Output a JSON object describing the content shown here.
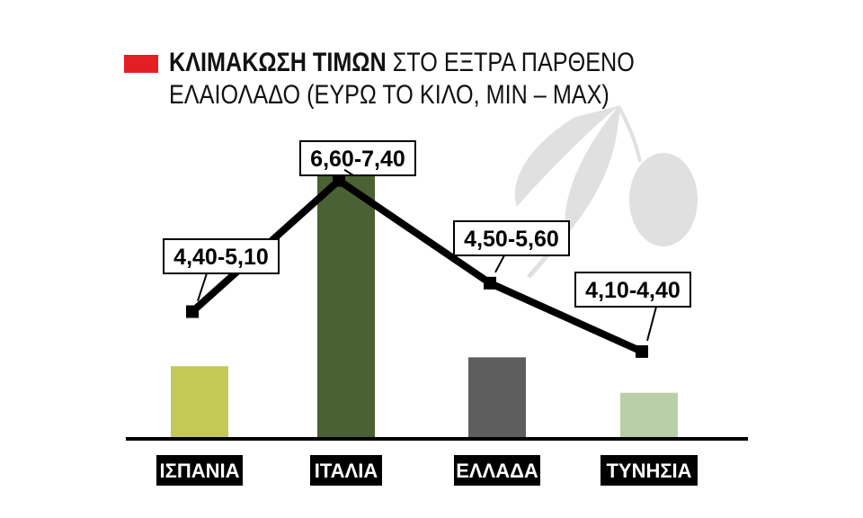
{
  "title": {
    "bold": "ΚΛΙΜΑΚΩΣΗ ΤΙΜΩΝ",
    "rest": "ΣΤΟ ΕΞΤΡΑ ΠΑΡΘΕΝΟ",
    "line2": "ΕΛΑΙΟΛΑΔΟ (ΕΥΡΩ ΤΟ ΚΙΛΟ, MIN – MAX)"
  },
  "colors": {
    "title_marker": "#e31e24",
    "line": "#000000",
    "olive_decoration": "#e0e0e0"
  },
  "decoration": "olive-branch",
  "chart_data": {
    "type": "bar",
    "categories": [
      "ΙΣΠΑΝΙΑ",
      "ΙΤΑΛΙΑ",
      "ΕΛΛΑΔΑ",
      "ΤΥΝΗΣΙΑ"
    ],
    "range_labels": [
      "4,40-5,10",
      "6,60-7,40",
      "4,50-5,60",
      "4,10-4,40"
    ],
    "min": [
      4.4,
      6.6,
      4.5,
      4.1
    ],
    "max": [
      5.1,
      7.4,
      5.6,
      4.4
    ],
    "bar_colors": [
      "#c4c956",
      "#4a6134",
      "#5e5e5e",
      "#b8cfa8"
    ],
    "overlay": "line",
    "grid": false,
    "legend": "none",
    "xlabel": "",
    "ylabel": ""
  }
}
